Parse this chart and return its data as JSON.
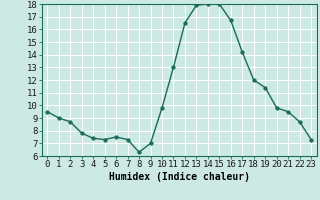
{
  "x": [
    0,
    1,
    2,
    3,
    4,
    5,
    6,
    7,
    8,
    9,
    10,
    11,
    12,
    13,
    14,
    15,
    16,
    17,
    18,
    19,
    20,
    21,
    22,
    23
  ],
  "y": [
    9.5,
    9.0,
    8.7,
    7.8,
    7.4,
    7.3,
    7.5,
    7.3,
    6.3,
    7.0,
    9.8,
    13.0,
    16.5,
    17.9,
    18.0,
    18.0,
    16.7,
    14.2,
    12.0,
    11.4,
    9.8,
    9.5,
    8.7,
    7.3
  ],
  "line_color": "#1a6b5a",
  "marker": "o",
  "marker_size": 2.5,
  "line_width": 1.0,
  "bg_color": "#cce9e4",
  "grid_color": "#ffffff",
  "xlabel": "Humidex (Indice chaleur)",
  "xlim": [
    -0.5,
    23.5
  ],
  "ylim": [
    6,
    18
  ],
  "yticks": [
    6,
    7,
    8,
    9,
    10,
    11,
    12,
    13,
    14,
    15,
    16,
    17,
    18
  ],
  "xticks": [
    0,
    1,
    2,
    3,
    4,
    5,
    6,
    7,
    8,
    9,
    10,
    11,
    12,
    13,
    14,
    15,
    16,
    17,
    18,
    19,
    20,
    21,
    22,
    23
  ],
  "xtick_labels": [
    "0",
    "1",
    "2",
    "3",
    "4",
    "5",
    "6",
    "7",
    "8",
    "9",
    "10",
    "11",
    "12",
    "13",
    "14",
    "15",
    "16",
    "17",
    "18",
    "19",
    "20",
    "21",
    "22",
    "23"
  ],
  "xlabel_fontsize": 7,
  "tick_fontsize": 6.5
}
